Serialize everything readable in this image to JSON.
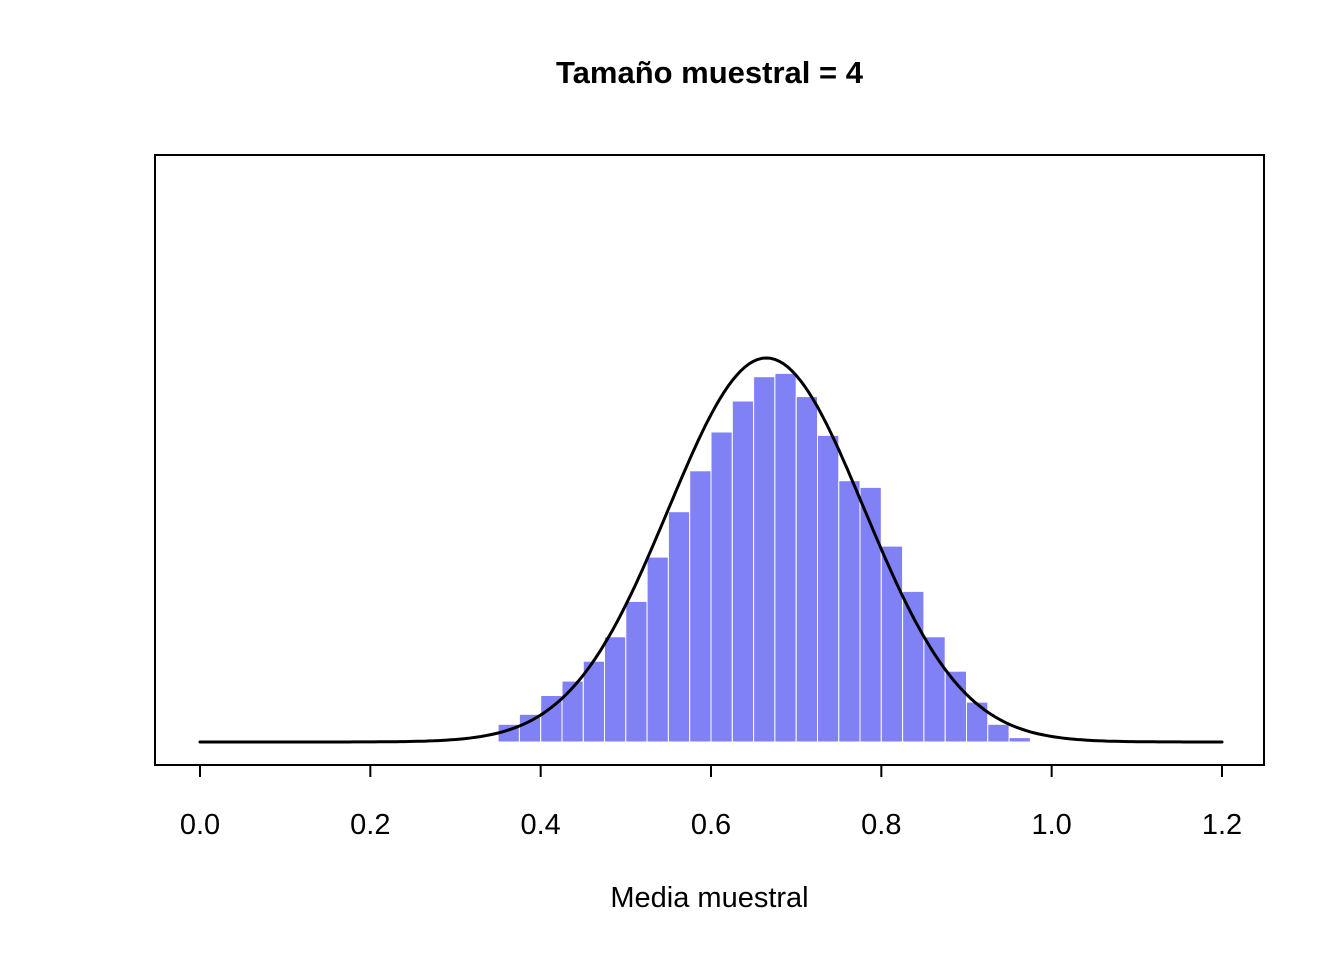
{
  "chart_data": {
    "type": "histogram",
    "title": "Tamaño muestral = 4",
    "xlabel": "Media muestral",
    "ylabel": "",
    "xlim": [
      0.0,
      1.2
    ],
    "x_ticks": [
      "0.0",
      "0.2",
      "0.4",
      "0.6",
      "0.8",
      "1.0",
      "1.2"
    ],
    "grid": false,
    "legend": false,
    "bin_start": 0.35,
    "bin_width": 0.025,
    "bar_densities": [
      0.16,
      0.25,
      0.42,
      0.55,
      0.73,
      0.95,
      1.27,
      1.67,
      2.08,
      2.45,
      2.8,
      3.08,
      3.3,
      3.33,
      3.12,
      2.77,
      2.36,
      2.3,
      1.77,
      1.36,
      0.95,
      0.64,
      0.36,
      0.16,
      0.04
    ],
    "bar_color": "#8181F6",
    "bar_border_color": "#FFFFFF",
    "curve": {
      "type": "normal-density",
      "mean": 0.665,
      "sd": 0.115,
      "color": "#000000"
    },
    "ylim": [
      0,
      5.3
    ]
  }
}
